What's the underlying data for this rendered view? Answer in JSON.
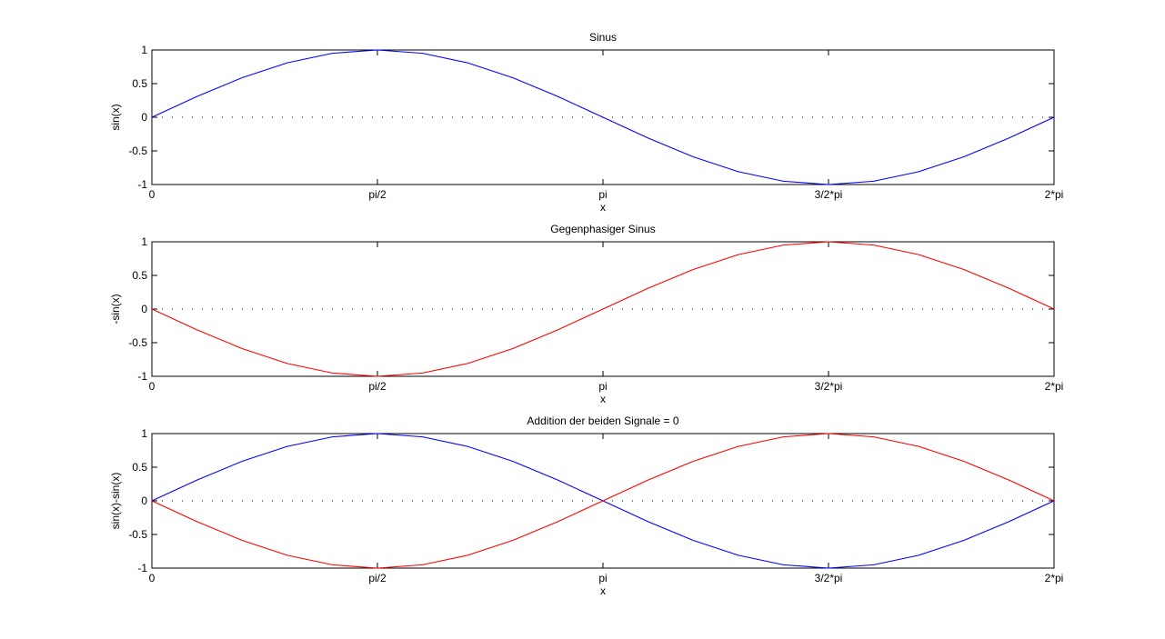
{
  "colors": {
    "background": "#ffffff",
    "axes": "#000000",
    "blue_series": "#0000ff",
    "red_series": "#ff0000"
  },
  "chart_data": [
    {
      "type": "line",
      "title": "Sinus",
      "xlabel": "x",
      "ylabel": "sin(x)",
      "xlim": [
        0,
        6.2832
      ],
      "ylim": [
        -1,
        1
      ],
      "xticks": [
        0,
        1.5708,
        3.1416,
        4.7124,
        6.2832
      ],
      "xtick_labels": [
        "0",
        "pi/2",
        "pi",
        "3/2*pi",
        "2*pi"
      ],
      "yticks": [
        -1,
        -0.5,
        0,
        0.5,
        1
      ],
      "ytick_labels": [
        "-1",
        "-0.5",
        "0",
        "0.5",
        "1"
      ],
      "reference_line": {
        "y": 0,
        "style": "dotted"
      },
      "series": [
        {
          "color": "#0000ff",
          "x": [
            0,
            0.3142,
            0.6283,
            0.9425,
            1.2566,
            1.5708,
            1.885,
            2.1991,
            2.5133,
            2.8274,
            3.1416,
            3.4558,
            3.7699,
            4.0841,
            4.3982,
            4.7124,
            5.0265,
            5.3407,
            5.6549,
            5.969,
            6.2832
          ],
          "y": [
            0,
            0.309,
            0.5878,
            0.809,
            0.9511,
            1,
            0.9511,
            0.809,
            0.5878,
            0.309,
            0,
            -0.309,
            -0.5878,
            -0.809,
            -0.9511,
            -1,
            -0.9511,
            -0.809,
            -0.5878,
            -0.309,
            0
          ]
        }
      ]
    },
    {
      "type": "line",
      "title": "Gegenphasiger Sinus",
      "xlabel": "x",
      "ylabel": "-sin(x)",
      "xlim": [
        0,
        6.2832
      ],
      "ylim": [
        -1,
        1
      ],
      "xticks": [
        0,
        1.5708,
        3.1416,
        4.7124,
        6.2832
      ],
      "xtick_labels": [
        "0",
        "pi/2",
        "pi",
        "3/2*pi",
        "2*pi"
      ],
      "yticks": [
        -1,
        -0.5,
        0,
        0.5,
        1
      ],
      "ytick_labels": [
        "-1",
        "-0.5",
        "0",
        "0.5",
        "1"
      ],
      "reference_line": {
        "y": 0,
        "style": "dotted"
      },
      "series": [
        {
          "color": "#ff0000",
          "x": [
            0,
            0.3142,
            0.6283,
            0.9425,
            1.2566,
            1.5708,
            1.885,
            2.1991,
            2.5133,
            2.8274,
            3.1416,
            3.4558,
            3.7699,
            4.0841,
            4.3982,
            4.7124,
            5.0265,
            5.3407,
            5.6549,
            5.969,
            6.2832
          ],
          "y": [
            0,
            -0.309,
            -0.5878,
            -0.809,
            -0.9511,
            -1,
            -0.9511,
            -0.809,
            -0.5878,
            -0.309,
            0,
            0.309,
            0.5878,
            0.809,
            0.9511,
            1,
            0.9511,
            0.809,
            0.5878,
            0.309,
            0
          ]
        }
      ]
    },
    {
      "type": "line",
      "title": "Addition der beiden Signale = 0",
      "xlabel": "x",
      "ylabel": "sin(x)-sin(x)",
      "xlim": [
        0,
        6.2832
      ],
      "ylim": [
        -1,
        1
      ],
      "xticks": [
        0,
        1.5708,
        3.1416,
        4.7124,
        6.2832
      ],
      "xtick_labels": [
        "0",
        "pi/2",
        "pi",
        "3/2*pi",
        "2*pi"
      ],
      "yticks": [
        -1,
        -0.5,
        0,
        0.5,
        1
      ],
      "ytick_labels": [
        "-1",
        "-0.5",
        "0",
        "0.5",
        "1"
      ],
      "reference_line": {
        "y": 0,
        "style": "dotted"
      },
      "series": [
        {
          "color": "#0000ff",
          "x": [
            0,
            0.3142,
            0.6283,
            0.9425,
            1.2566,
            1.5708,
            1.885,
            2.1991,
            2.5133,
            2.8274,
            3.1416,
            3.4558,
            3.7699,
            4.0841,
            4.3982,
            4.7124,
            5.0265,
            5.3407,
            5.6549,
            5.969,
            6.2832
          ],
          "y": [
            0,
            0.309,
            0.5878,
            0.809,
            0.9511,
            1,
            0.9511,
            0.809,
            0.5878,
            0.309,
            0,
            -0.309,
            -0.5878,
            -0.809,
            -0.9511,
            -1,
            -0.9511,
            -0.809,
            -0.5878,
            -0.309,
            0
          ]
        },
        {
          "color": "#ff0000",
          "x": [
            0,
            0.3142,
            0.6283,
            0.9425,
            1.2566,
            1.5708,
            1.885,
            2.1991,
            2.5133,
            2.8274,
            3.1416,
            3.4558,
            3.7699,
            4.0841,
            4.3982,
            4.7124,
            5.0265,
            5.3407,
            5.6549,
            5.969,
            6.2832
          ],
          "y": [
            0,
            -0.309,
            -0.5878,
            -0.809,
            -0.9511,
            -1,
            -0.9511,
            -0.809,
            -0.5878,
            -0.309,
            0,
            0.309,
            0.5878,
            0.809,
            0.9511,
            1,
            0.9511,
            0.809,
            0.5878,
            0.309,
            0
          ]
        }
      ]
    }
  ]
}
